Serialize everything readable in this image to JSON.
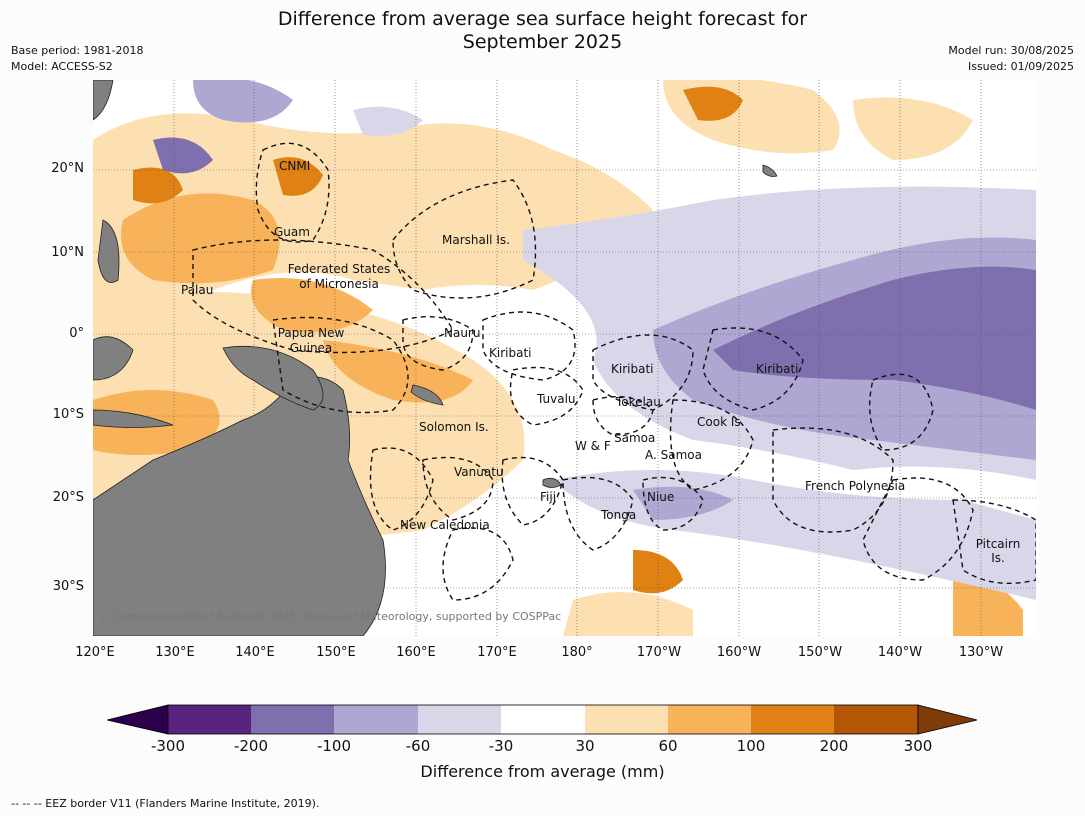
{
  "title": "Difference from average sea surface height forecast for September 2025",
  "title_line1": "Difference from average sea surface height forecast for",
  "title_line2": "September 2025",
  "meta_left": {
    "base_period": "Base period: 1981-2018",
    "model": "Model: ACCESS-S2"
  },
  "meta_right": {
    "model_run": "Model run: 30/08/2025",
    "issued": "Issued: 01/09/2025"
  },
  "copyright": "© Commonwealth of Australia 2025, Bureau of Meteorology, supported by COSPPac",
  "lon_labels": [
    "120°E",
    "130°E",
    "140°E",
    "150°E",
    "160°E",
    "170°E",
    "180°",
    "170°W",
    "160°W",
    "150°W",
    "140°W",
    "130°W"
  ],
  "lat_labels": [
    "20°N",
    "10°N",
    "0°",
    "10°S",
    "20°S",
    "30°S"
  ],
  "region_labels": [
    {
      "id": "cnmi",
      "text": "CNMI"
    },
    {
      "id": "guam",
      "text": "Guam"
    },
    {
      "id": "marshall",
      "text": "Marshall Is."
    },
    {
      "id": "fsm1",
      "text": "Federated States"
    },
    {
      "id": "fsm2",
      "text": "of Micronesia"
    },
    {
      "id": "palau",
      "text": "Palau"
    },
    {
      "id": "png1",
      "text": "Papua New"
    },
    {
      "id": "png2",
      "text": "Guinea"
    },
    {
      "id": "nauru",
      "text": "Nauru"
    },
    {
      "id": "kiribati1",
      "text": "Kiribati"
    },
    {
      "id": "kiribati2",
      "text": "Kiribati"
    },
    {
      "id": "kiribati3",
      "text": "Kiribati"
    },
    {
      "id": "tuvalu",
      "text": "Tuvalu"
    },
    {
      "id": "tokelau",
      "text": "Tokelau"
    },
    {
      "id": "cook",
      "text": "Cook Is."
    },
    {
      "id": "solomon",
      "text": "Solomon Is."
    },
    {
      "id": "samoa",
      "text": "Samoa"
    },
    {
      "id": "wf",
      "text": "W & F"
    },
    {
      "id": "asamoa",
      "text": "A. Samoa"
    },
    {
      "id": "vanuatu",
      "text": "Vanuatu"
    },
    {
      "id": "fiji",
      "text": "Fiji"
    },
    {
      "id": "niue",
      "text": "Niue"
    },
    {
      "id": "frpoly",
      "text": "French Polynesia"
    },
    {
      "id": "tonga",
      "text": "Tonga"
    },
    {
      "id": "newcal",
      "text": "New Caledonia"
    },
    {
      "id": "pitcairn1",
      "text": "Pitcairn"
    },
    {
      "id": "pitcairn2",
      "text": "Is."
    }
  ],
  "colorbar": {
    "title": "Difference from average (mm)",
    "ticks": [
      "-300",
      "-200",
      "-100",
      "-60",
      "-30",
      "30",
      "60",
      "100",
      "200",
      "300"
    ],
    "colors": [
      "#57237f",
      "#7f6fae",
      "#ada7d1",
      "#d8d7ea",
      "#ffffff",
      "#fde0b2",
      "#f8b35a",
      "#e08113",
      "#b35606"
    ],
    "under_color": "#2d004b",
    "over_color": "#7f3b08"
  },
  "land_color": "#808080",
  "footer": "--  --  -- EEZ border V11 (Flanders Marine Institute, 2019)."
}
